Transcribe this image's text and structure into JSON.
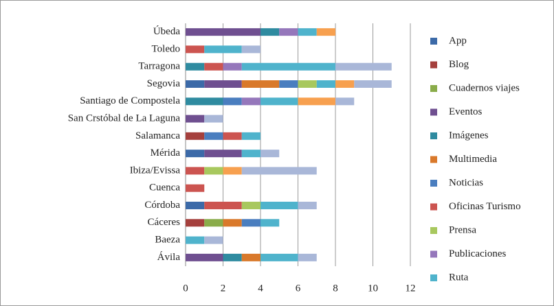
{
  "chart_data": {
    "type": "stacked-barh",
    "categories": [
      "Ávila",
      "Baeza",
      "Cáceres",
      "Córdoba",
      "Cuenca",
      "Ibiza/Evissa",
      "Mérida",
      "Salamanca",
      "San Crstóbal de La Laguna",
      "Santiago de Compostela",
      "Segovia",
      "Tarragona",
      "Toledo",
      "Úbeda"
    ],
    "series": [
      {
        "name": "App",
        "color": "#3c6aa8",
        "values": [
          0,
          0,
          0,
          1,
          0,
          0,
          1,
          0,
          0,
          0,
          1,
          0,
          0,
          0
        ]
      },
      {
        "name": "Blog",
        "color": "#a5403d",
        "values": [
          0,
          0,
          1,
          0,
          0,
          0,
          0,
          1,
          0,
          0,
          0,
          0,
          0,
          0
        ]
      },
      {
        "name": "Cuadernos viajes",
        "color": "#8aac4a",
        "values": [
          0,
          0,
          1,
          0,
          0,
          0,
          0,
          0,
          0,
          0,
          0,
          0,
          0,
          0
        ]
      },
      {
        "name": "Eventos",
        "color": "#6f4f90",
        "values": [
          2,
          0,
          0,
          0,
          0,
          0,
          2,
          0,
          1,
          0,
          2,
          0,
          0,
          4
        ]
      },
      {
        "name": "Imágenes",
        "color": "#2f8ba0",
        "values": [
          1,
          0,
          0,
          0,
          0,
          0,
          0,
          0,
          0,
          2,
          0,
          1,
          0,
          1
        ]
      },
      {
        "name": "Multimedia",
        "color": "#d9792b",
        "values": [
          1,
          0,
          1,
          0,
          0,
          0,
          0,
          0,
          0,
          0,
          2,
          0,
          0,
          0
        ]
      },
      {
        "name": "Noticias",
        "color": "#4a7ebf",
        "values": [
          0,
          0,
          1,
          0,
          0,
          0,
          0,
          1,
          0,
          1,
          1,
          0,
          0,
          0
        ]
      },
      {
        "name": "Oficinas Turismo",
        "color": "#cc5450",
        "values": [
          0,
          0,
          0,
          2,
          1,
          1,
          0,
          1,
          0,
          0,
          0,
          1,
          1,
          0
        ]
      },
      {
        "name": "Prensa",
        "color": "#a8c85e",
        "values": [
          0,
          0,
          0,
          1,
          0,
          1,
          0,
          0,
          0,
          0,
          1,
          0,
          0,
          0
        ]
      },
      {
        "name": "Publicaciones",
        "color": "#9577bb",
        "values": [
          0,
          0,
          0,
          0,
          0,
          0,
          0,
          0,
          0,
          1,
          0,
          1,
          0,
          1
        ]
      },
      {
        "name": "Ruta",
        "color": "#4fb3cc",
        "values": [
          2,
          1,
          1,
          2,
          0,
          0,
          1,
          1,
          0,
          2,
          1,
          5,
          2,
          1
        ]
      },
      {
        "name": null,
        "color": "#f7a04f",
        "values": [
          0,
          0,
          0,
          0,
          0,
          1,
          0,
          0,
          0,
          2,
          1,
          0,
          0,
          1
        ]
      },
      {
        "name": null,
        "color": "#a9b7d8",
        "values": [
          1,
          1,
          0,
          1,
          0,
          4,
          1,
          0,
          1,
          1,
          2,
          3,
          1,
          0
        ]
      }
    ],
    "xlim": [
      0,
      12
    ],
    "xticks": [
      0,
      2,
      4,
      6,
      8,
      10,
      12
    ],
    "grid": true
  }
}
